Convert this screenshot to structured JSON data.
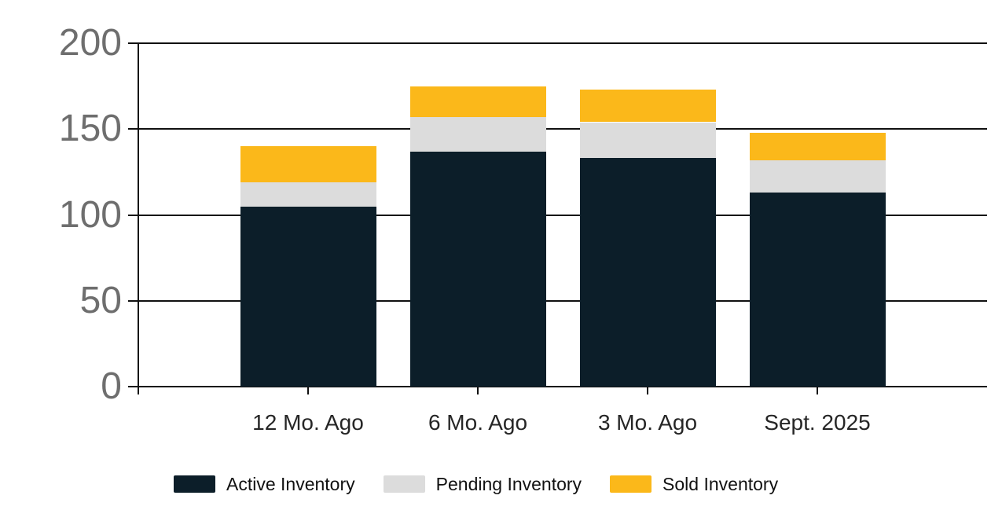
{
  "chart_data": {
    "type": "bar",
    "stacked": true,
    "categories": [
      "12 Mo. Ago",
      "6 Mo. Ago",
      "3 Mo. Ago",
      "Sept. 2025"
    ],
    "series": [
      {
        "name": "Active Inventory",
        "color": "#0c1e29",
        "values": [
          105,
          137,
          133,
          113
        ]
      },
      {
        "name": "Pending Inventory",
        "color": "#dcdcdc",
        "values": [
          14,
          20,
          21,
          19
        ]
      },
      {
        "name": "Sold Inventory",
        "color": "#fbb81a",
        "values": [
          21,
          18,
          19,
          16
        ]
      }
    ],
    "stack_totals": [
      140,
      175,
      173,
      148
    ],
    "y_ticks": [
      0,
      50,
      100,
      150,
      200
    ],
    "ylim": [
      0,
      200
    ],
    "grid": true,
    "legend_position": "bottom"
  },
  "colors": {
    "background": "#ffffff",
    "gridline": "#111111",
    "y_tick_label": "#6e6e6e",
    "x_tick_label": "#262626",
    "legend_text": "#111111"
  }
}
